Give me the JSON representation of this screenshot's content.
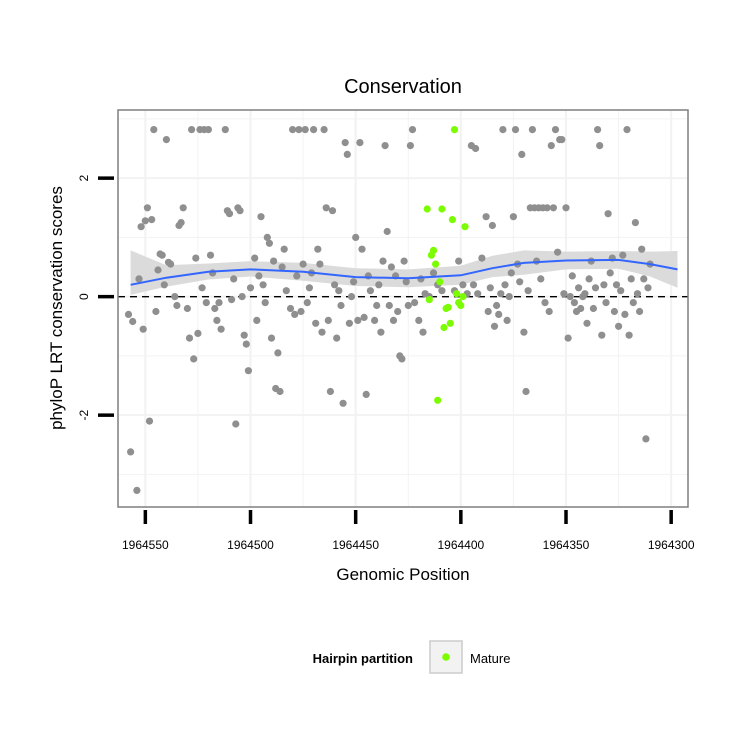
{
  "chart_data": {
    "type": "scatter",
    "title": "Conservation",
    "xlabel": "Genomic Position",
    "ylabel": "phyloP LRT conservation scores",
    "x_reversed": true,
    "xlim": [
      1964563,
      1964292
    ],
    "ylim": [
      -3.55,
      3.15
    ],
    "x_ticks": [
      "1964550",
      "1964500",
      "1964450",
      "1964400",
      "1964350",
      "1964300"
    ],
    "y_ticks": [
      "-2",
      "0",
      "2"
    ],
    "reference_line": {
      "y": 0,
      "style": "dashed"
    },
    "grid": true,
    "legend": {
      "title": "Hairpin partition",
      "position": "bottom",
      "entries": [
        "Mature"
      ]
    },
    "colors": {
      "background": "#ffffff",
      "other": "#8f8f8f",
      "Mature": "#7cfc00",
      "smooth": "#3366ff",
      "ribbon": "#d9d9d9",
      "grid": "#f2f2f2",
      "border": "#7f7f7f"
    },
    "series": [
      {
        "name": "",
        "color": "#8f8f8f",
        "points": [
          [
            1964557,
            -2.62
          ],
          [
            1964556,
            -0.42
          ],
          [
            1964554,
            -3.27
          ],
          [
            1964558,
            -0.3
          ],
          [
            1964553,
            0.3
          ],
          [
            1964552,
            1.18
          ],
          [
            1964551,
            -0.55
          ],
          [
            1964550,
            1.28
          ],
          [
            1964549,
            1.5
          ],
          [
            1964548,
            -2.1
          ],
          [
            1964547,
            1.3
          ],
          [
            1964546,
            2.82
          ],
          [
            1964545,
            -0.25
          ],
          [
            1964544,
            0.45
          ],
          [
            1964543,
            0.72
          ],
          [
            1964542,
            0.7
          ],
          [
            1964541,
            0.2
          ],
          [
            1964540,
            2.65
          ],
          [
            1964539,
            0.58
          ],
          [
            1964538,
            0.55
          ],
          [
            1964536,
            0.0
          ],
          [
            1964535,
            -0.15
          ],
          [
            1964534,
            1.2
          ],
          [
            1964533,
            1.25
          ],
          [
            1964532,
            1.5
          ],
          [
            1964530,
            -0.2
          ],
          [
            1964529,
            -0.7
          ],
          [
            1964528,
            2.82
          ],
          [
            1964527,
            -1.05
          ],
          [
            1964526,
            0.65
          ],
          [
            1964525,
            -0.62
          ],
          [
            1964524,
            2.82
          ],
          [
            1964523,
            0.15
          ],
          [
            1964522,
            2.82
          ],
          [
            1964521,
            -0.1
          ],
          [
            1964520,
            2.82
          ],
          [
            1964519,
            0.7
          ],
          [
            1964518,
            0.4
          ],
          [
            1964517,
            -0.2
          ],
          [
            1964516,
            -0.4
          ],
          [
            1964515,
            -0.1
          ],
          [
            1964514,
            -0.55
          ],
          [
            1964512,
            2.82
          ],
          [
            1964511,
            1.45
          ],
          [
            1964510,
            1.4
          ],
          [
            1964509,
            -0.05
          ],
          [
            1964508,
            0.3
          ],
          [
            1964507,
            -2.15
          ],
          [
            1964506,
            1.5
          ],
          [
            1964505,
            1.45
          ],
          [
            1964504,
            0.0
          ],
          [
            1964503,
            -0.65
          ],
          [
            1964502,
            -0.8
          ],
          [
            1964501,
            -1.25
          ],
          [
            1964500,
            0.15
          ],
          [
            1964498,
            0.65
          ],
          [
            1964497,
            -0.4
          ],
          [
            1964496,
            0.35
          ],
          [
            1964495,
            1.35
          ],
          [
            1964494,
            0.2
          ],
          [
            1964493,
            -0.1
          ],
          [
            1964492,
            1.0
          ],
          [
            1964491,
            0.9
          ],
          [
            1964490,
            -0.7
          ],
          [
            1964489,
            0.6
          ],
          [
            1964488,
            -1.55
          ],
          [
            1964487,
            -0.95
          ],
          [
            1964486,
            -1.6
          ],
          [
            1964485,
            0.5
          ],
          [
            1964484,
            0.8
          ],
          [
            1964483,
            0.1
          ],
          [
            1964481,
            -0.2
          ],
          [
            1964480,
            2.82
          ],
          [
            1964479,
            -0.3
          ],
          [
            1964478,
            0.35
          ],
          [
            1964477,
            2.82
          ],
          [
            1964476,
            -0.25
          ],
          [
            1964475,
            0.55
          ],
          [
            1964474,
            2.82
          ],
          [
            1964473,
            -0.1
          ],
          [
            1964472,
            0.15
          ],
          [
            1964471,
            0.4
          ],
          [
            1964470,
            2.82
          ],
          [
            1964469,
            -0.45
          ],
          [
            1964468,
            0.8
          ],
          [
            1964467,
            0.55
          ],
          [
            1964466,
            -0.6
          ],
          [
            1964465,
            2.82
          ],
          [
            1964464,
            1.5
          ],
          [
            1964463,
            -0.4
          ],
          [
            1964462,
            -1.6
          ],
          [
            1964461,
            1.45
          ],
          [
            1964460,
            0.2
          ],
          [
            1964459,
            -0.7
          ],
          [
            1964458,
            0.1
          ],
          [
            1964457,
            -0.15
          ],
          [
            1964456,
            -1.8
          ],
          [
            1964455,
            2.6
          ],
          [
            1964454,
            2.4
          ],
          [
            1964453,
            -0.45
          ],
          [
            1964452,
            0.0
          ],
          [
            1964451,
            0.25
          ],
          [
            1964450,
            1.0
          ],
          [
            1964449,
            -0.4
          ],
          [
            1964448,
            2.6
          ],
          [
            1964447,
            0.8
          ],
          [
            1964446,
            -0.35
          ],
          [
            1964445,
            -1.65
          ],
          [
            1964444,
            0.35
          ],
          [
            1964443,
            0.1
          ],
          [
            1964441,
            -0.4
          ],
          [
            1964440,
            -0.15
          ],
          [
            1964439,
            0.2
          ],
          [
            1964438,
            -0.6
          ],
          [
            1964437,
            0.6
          ],
          [
            1964436,
            2.55
          ],
          [
            1964435,
            1.1
          ],
          [
            1964434,
            -0.15
          ],
          [
            1964433,
            0.5
          ],
          [
            1964432,
            -0.4
          ],
          [
            1964431,
            0.35
          ],
          [
            1964430,
            -0.25
          ],
          [
            1964429,
            -1.0
          ],
          [
            1964428,
            -1.05
          ],
          [
            1964427,
            0.6
          ],
          [
            1964426,
            0.25
          ],
          [
            1964425,
            -0.15
          ],
          [
            1964424,
            2.55
          ],
          [
            1964423,
            2.82
          ],
          [
            1964422,
            -0.1
          ],
          [
            1964420,
            -0.4
          ],
          [
            1964419,
            0.3
          ],
          [
            1964418,
            -0.6
          ],
          [
            1964417,
            0.05
          ],
          [
            1964415,
            0.0
          ],
          [
            1964413,
            0.4
          ],
          [
            1964411,
            0.2
          ],
          [
            1964409,
            0.1
          ],
          [
            1964403,
            0.1
          ],
          [
            1964401,
            0.6
          ],
          [
            1964399,
            0.2
          ],
          [
            1964397,
            0.05
          ],
          [
            1964395,
            2.55
          ],
          [
            1964394,
            0.2
          ],
          [
            1964393,
            2.5
          ],
          [
            1964392,
            0.05
          ],
          [
            1964390,
            0.65
          ],
          [
            1964388,
            1.35
          ],
          [
            1964387,
            -0.25
          ],
          [
            1964386,
            0.15
          ],
          [
            1964385,
            1.2
          ],
          [
            1964384,
            -0.5
          ],
          [
            1964383,
            -0.15
          ],
          [
            1964382,
            -0.3
          ],
          [
            1964381,
            0.05
          ],
          [
            1964380,
            2.82
          ],
          [
            1964379,
            0.2
          ],
          [
            1964378,
            -0.4
          ],
          [
            1964377,
            0.0
          ],
          [
            1964376,
            0.4
          ],
          [
            1964375,
            1.35
          ],
          [
            1964374,
            2.82
          ],
          [
            1964373,
            0.55
          ],
          [
            1964372,
            0.25
          ],
          [
            1964371,
            2.4
          ],
          [
            1964370,
            -0.6
          ],
          [
            1964369,
            -1.6
          ],
          [
            1964368,
            0.1
          ],
          [
            1964367,
            1.5
          ],
          [
            1964366,
            2.82
          ],
          [
            1964365,
            1.5
          ],
          [
            1964364,
            0.6
          ],
          [
            1964363,
            1.5
          ],
          [
            1964362,
            0.3
          ],
          [
            1964361,
            1.5
          ],
          [
            1964360,
            -0.1
          ],
          [
            1964359,
            1.5
          ],
          [
            1964358,
            -0.25
          ],
          [
            1964357,
            2.55
          ],
          [
            1964356,
            1.5
          ],
          [
            1964355,
            2.82
          ],
          [
            1964354,
            0.75
          ],
          [
            1964353,
            2.65
          ],
          [
            1964352,
            2.65
          ],
          [
            1964351,
            0.05
          ],
          [
            1964350,
            1.5
          ],
          [
            1964349,
            -0.7
          ],
          [
            1964348,
            0.0
          ],
          [
            1964347,
            0.35
          ],
          [
            1964346,
            -0.1
          ],
          [
            1964345,
            -0.25
          ],
          [
            1964344,
            0.15
          ],
          [
            1964343,
            -0.2
          ],
          [
            1964342,
            0.0
          ],
          [
            1964341,
            0.05
          ],
          [
            1964340,
            -0.45
          ],
          [
            1964339,
            0.3
          ],
          [
            1964338,
            0.6
          ],
          [
            1964337,
            -0.2
          ],
          [
            1964336,
            0.15
          ],
          [
            1964335,
            2.82
          ],
          [
            1964334,
            2.55
          ],
          [
            1964333,
            -0.65
          ],
          [
            1964332,
            0.2
          ],
          [
            1964331,
            -0.1
          ],
          [
            1964330,
            1.4
          ],
          [
            1964329,
            0.4
          ],
          [
            1964328,
            0.65
          ],
          [
            1964327,
            -0.25
          ],
          [
            1964326,
            0.2
          ],
          [
            1964325,
            -0.5
          ],
          [
            1964324,
            0.1
          ],
          [
            1964323,
            0.7
          ],
          [
            1964322,
            -0.3
          ],
          [
            1964321,
            2.82
          ],
          [
            1964320,
            -0.65
          ],
          [
            1964319,
            0.3
          ],
          [
            1964318,
            -0.1
          ],
          [
            1964317,
            1.25
          ],
          [
            1964316,
            0.05
          ],
          [
            1964315,
            -0.25
          ],
          [
            1964314,
            0.8
          ],
          [
            1964313,
            0.3
          ],
          [
            1964312,
            -2.4
          ],
          [
            1964311,
            0.15
          ],
          [
            1964310,
            0.55
          ]
        ]
      },
      {
        "name": "Mature",
        "color": "#7cfc00",
        "points": [
          [
            1964416,
            1.48
          ],
          [
            1964415,
            -0.05
          ],
          [
            1964414,
            0.7
          ],
          [
            1964413,
            0.78
          ],
          [
            1964412,
            0.55
          ],
          [
            1964411,
            -1.75
          ],
          [
            1964410,
            0.25
          ],
          [
            1964409,
            1.48
          ],
          [
            1964408,
            -0.52
          ],
          [
            1964407,
            -0.2
          ],
          [
            1964406,
            -0.18
          ],
          [
            1964405,
            -0.45
          ],
          [
            1964404,
            1.3
          ],
          [
            1964403,
            2.82
          ],
          [
            1964402,
            0.05
          ],
          [
            1964401,
            -0.1
          ],
          [
            1964400,
            -0.15
          ],
          [
            1964399,
            0.0
          ],
          [
            1964398,
            1.18
          ]
        ]
      }
    ],
    "smooth": {
      "color": "#3366ff",
      "points": [
        [
          1964557,
          0.2
        ],
        [
          1964540,
          0.32
        ],
        [
          1964520,
          0.42
        ],
        [
          1964500,
          0.46
        ],
        [
          1964475,
          0.42
        ],
        [
          1964450,
          0.33
        ],
        [
          1964425,
          0.31
        ],
        [
          1964400,
          0.36
        ],
        [
          1964385,
          0.48
        ],
        [
          1964370,
          0.57
        ],
        [
          1964350,
          0.61
        ],
        [
          1964325,
          0.62
        ],
        [
          1964310,
          0.55
        ],
        [
          1964297,
          0.46
        ]
      ],
      "ribbon": [
        [
          1964557,
          0.03,
          0.78
        ],
        [
          1964540,
          0.17,
          0.53
        ],
        [
          1964520,
          0.29,
          0.56
        ],
        [
          1964500,
          0.34,
          0.6
        ],
        [
          1964475,
          0.27,
          0.57
        ],
        [
          1964450,
          0.18,
          0.48
        ],
        [
          1964425,
          0.16,
          0.46
        ],
        [
          1964400,
          0.2,
          0.52
        ],
        [
          1964385,
          0.33,
          0.69
        ],
        [
          1964370,
          0.37,
          0.78
        ],
        [
          1964350,
          0.46,
          0.76
        ],
        [
          1964325,
          0.47,
          0.77
        ],
        [
          1964310,
          0.34,
          0.76
        ],
        [
          1964297,
          0.15,
          0.77
        ]
      ]
    }
  }
}
